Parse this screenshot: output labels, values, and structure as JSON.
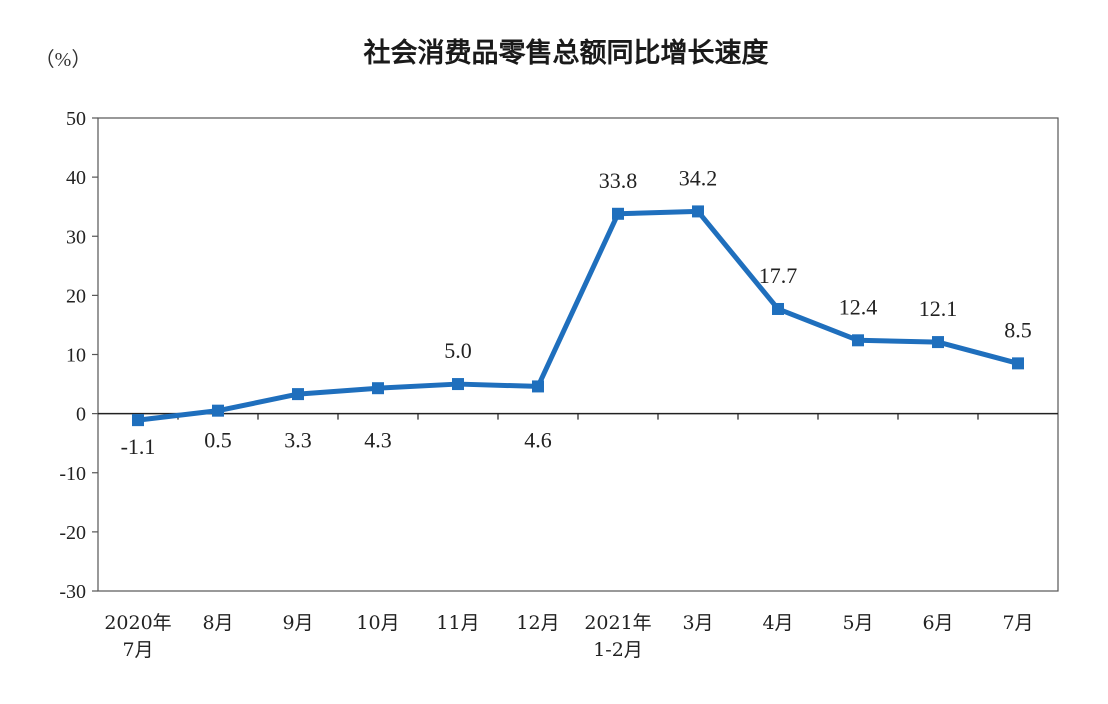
{
  "chart_data": {
    "type": "line",
    "title": "社会消费品零售总额同比增长速度",
    "unit": "（%）",
    "categories": [
      [
        "2020年",
        "7月"
      ],
      [
        "8月"
      ],
      [
        "9月"
      ],
      [
        "10月"
      ],
      [
        "11月"
      ],
      [
        "12月"
      ],
      [
        "2021年",
        "1-2月"
      ],
      [
        "3月"
      ],
      [
        "4月"
      ],
      [
        "5月"
      ],
      [
        "6月"
      ],
      [
        "7月"
      ]
    ],
    "series": [
      {
        "values": [
          -1.1,
          0.5,
          3.3,
          4.3,
          5.0,
          4.6,
          33.8,
          34.2,
          17.7,
          12.4,
          12.1,
          8.5
        ],
        "labels": [
          "-1.1",
          "0.5",
          "3.3",
          "4.3",
          "5.0",
          "4.6",
          "33.8",
          "34.2",
          "17.7",
          "12.4",
          "12.1",
          "8.5"
        ],
        "color": "#1f6fbd"
      }
    ],
    "ylim": [
      -30,
      50
    ],
    "yticks": [
      50,
      40,
      30,
      20,
      10,
      0,
      -10,
      -20,
      -30
    ],
    "grid": false,
    "legend": "none"
  }
}
